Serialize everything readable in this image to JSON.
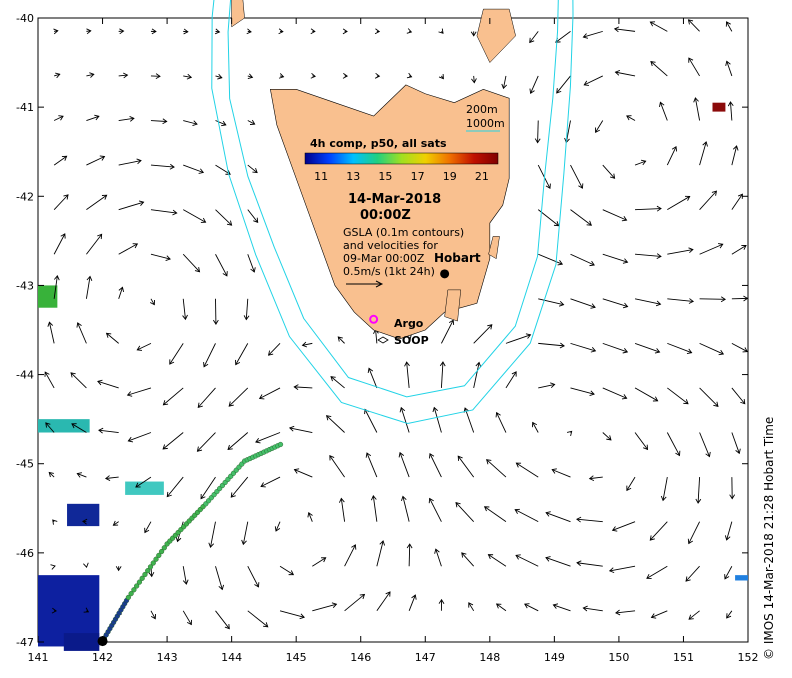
{
  "colorbar": {
    "title": "4h comp, p50, all sats",
    "ticks": [
      "11",
      "13",
      "15",
      "17",
      "19",
      "21"
    ],
    "range": [
      10,
      22
    ],
    "colors": [
      "#00008b",
      "#0040ff",
      "#00c0ff",
      "#20d080",
      "#a0e020",
      "#f0d000",
      "#f07000",
      "#c01000",
      "#800000"
    ]
  },
  "info": {
    "date": "14-Mar-2018",
    "time": "00:00Z",
    "line1": "GSLA (0.1m contours)",
    "line2": "and velocities for",
    "line3": "09-Mar 00:00Z",
    "scale_label": "0.5m/s (1kt 24h)"
  },
  "legend": {
    "contour1": "200m",
    "contour2": "1000m"
  },
  "places": {
    "hobart": "Hobart",
    "argo": "Argo",
    "soop": "SOOP"
  },
  "credit": "© IMOS 14-Mar-2018 21:28 Hobart Time",
  "x_ticks": [
    "141",
    "142",
    "143",
    "144",
    "145",
    "146",
    "147",
    "148",
    "149",
    "150",
    "151",
    "152"
  ],
  "y_ticks": [
    "-40",
    "-41",
    "-42",
    "-43",
    "-44",
    "-45",
    "-46",
    "-47"
  ],
  "map_data": {
    "lon_range": [
      141,
      152
    ],
    "lat_range": [
      -47,
      -40
    ],
    "land_color": "#f9c08f",
    "isobath_color": "#22d3e6",
    "argo_color": "#ff00ff",
    "hobart": [
      147.3,
      -42.87
    ],
    "argo": [
      146.2,
      -43.38
    ],
    "soop_track": [
      [
        142.0,
        -46.99
      ],
      [
        142.4,
        -46.5
      ],
      [
        143.0,
        -45.9
      ],
      [
        143.6,
        -45.45
      ],
      [
        144.2,
        -44.97
      ],
      [
        144.8,
        -44.77
      ]
    ],
    "eddies": [
      {
        "lon": 145.0,
        "lat": -45.8,
        "dir": 1
      },
      {
        "lon": 150.1,
        "lat": -41.5,
        "dir": 1
      },
      {
        "lon": 150.2,
        "lat": -45.0,
        "dir": -1
      },
      {
        "lon": 142.6,
        "lat": -43.2,
        "dir": -1
      },
      {
        "lon": 148.4,
        "lat": -44.2,
        "dir": -1
      }
    ]
  }
}
